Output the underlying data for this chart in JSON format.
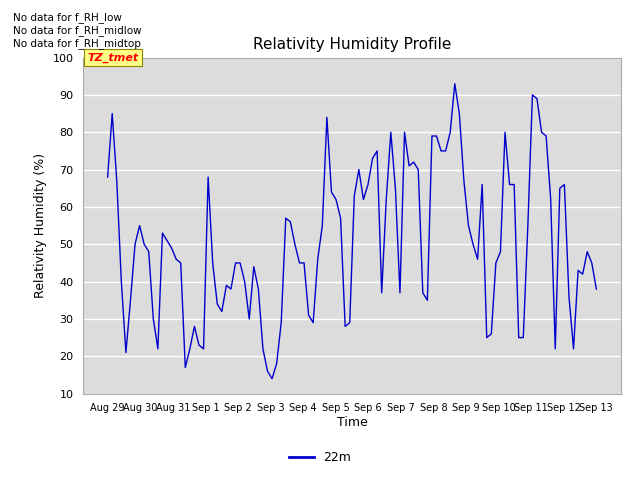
{
  "title": "Relativity Humidity Profile",
  "ylabel": "Relativity Humidity (%)",
  "xlabel": "Time",
  "legend_label": "22m",
  "ylim": [
    10,
    100
  ],
  "no_data_texts": [
    "No data for f_RH_low",
    "No data for f_RH_midlow",
    "No data for f_RH_midtop"
  ],
  "tz_tmet_label": "TZ_tmet",
  "line_color": "#0000cc",
  "background_color": "#dcdcdc",
  "yticks": [
    10,
    20,
    30,
    40,
    50,
    60,
    70,
    80,
    90,
    100
  ],
  "x_tick_labels": [
    "Aug 29",
    "Aug 30",
    "Aug 31",
    "Sep 1",
    "Sep 2",
    "Sep 3",
    "Sep 4",
    "Sep 5",
    "Sep 6",
    "Sep 7",
    "Sep 8",
    "Sep 9",
    "Sep 10",
    "Sep 11",
    "Sep 12",
    "Sep 13"
  ],
  "rh_values": [
    68,
    85,
    67,
    40,
    21,
    35,
    50,
    55,
    50,
    48,
    30,
    22,
    53,
    51,
    49,
    46,
    45,
    17,
    22,
    28,
    23,
    22,
    68,
    45,
    34,
    32,
    39,
    38,
    45,
    45,
    40,
    30,
    44,
    38,
    22,
    16,
    14,
    18,
    29,
    57,
    56,
    50,
    45,
    45,
    31,
    29,
    46,
    55,
    84,
    64,
    62,
    57,
    28,
    29,
    63,
    70,
    62,
    66,
    73,
    75,
    37,
    62,
    80,
    65,
    37,
    80,
    71,
    72,
    70,
    37,
    35,
    79,
    79,
    75,
    75,
    80,
    93,
    85,
    67,
    55,
    50,
    46,
    66,
    25,
    26,
    45,
    48,
    80,
    66,
    66,
    25,
    25,
    55,
    90,
    89,
    80,
    79,
    62,
    22,
    65,
    66,
    36,
    22,
    43,
    42,
    48,
    45,
    38
  ]
}
